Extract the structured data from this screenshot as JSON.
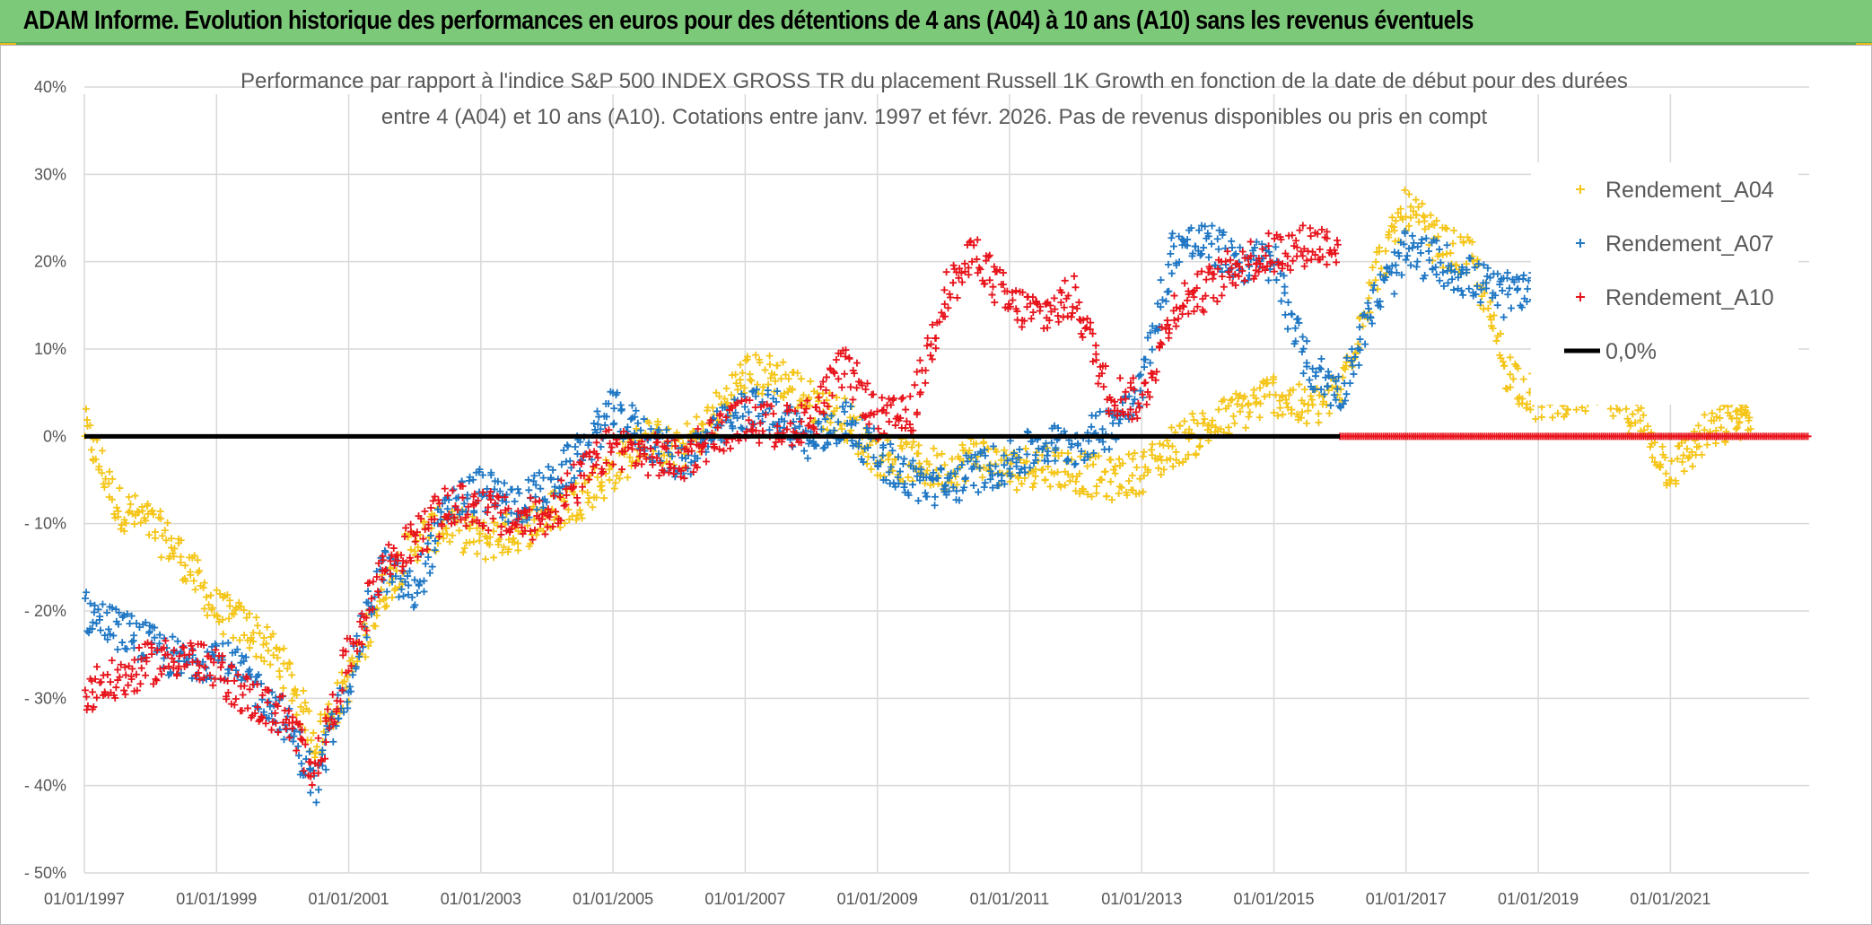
{
  "header": {
    "title": "ADAM Informe. Evolution historique des performances en euros pour des détentions de 4 ans (A04) à 10 ans (A10) sans les revenus éventuels"
  },
  "colors": {
    "header_bg": "#7dc97a",
    "a04": "#f5c518",
    "a07": "#1f77c4",
    "a10": "#e8141c",
    "zero_line": "#000000",
    "grid": "#d9d9d9"
  },
  "chart_data": {
    "type": "scatter",
    "title_lines": [
      "Performance par rapport à l'indice S&P 500 INDEX GROSS TR  du placement Russell 1K Growth en fonction de la date de début pour des durées",
      "entre 4 (A04) et 10 ans (A10). Cotations entre janv. 1997 et févr. 2026. Pas de revenus disponibles ou pris en compt"
    ],
    "x_tick_labels": [
      "01/01/1997",
      "01/01/1999",
      "01/01/2001",
      "01/01/2003",
      "01/01/2005",
      "01/01/2007",
      "01/01/2009",
      "01/01/2011",
      "01/01/2013",
      "01/01/2015",
      "01/01/2017",
      "01/01/2019",
      "01/01/2021"
    ],
    "x_range": [
      1997.0,
      2023.1
    ],
    "y_tick_labels": [
      "40%",
      "30%",
      "20%",
      "10%",
      "0%",
      "- 10%",
      "- 20%",
      "- 30%",
      "- 40%",
      "- 50%"
    ],
    "y_tick_values": [
      40,
      30,
      20,
      10,
      0,
      -10,
      -20,
      -30,
      -40,
      -50
    ],
    "ylim": [
      -50,
      40
    ],
    "marker": "+",
    "legend": [
      "Rendement_A04",
      "Rendement_A07",
      "Rendement_A10",
      "0,0%"
    ],
    "series": [
      {
        "name": "Rendement_A04",
        "x": [
          1997.0,
          1997.5,
          1998.0,
          1998.5,
          1999.0,
          1999.5,
          2000.0,
          2000.5,
          2001.0,
          2001.5,
          2002.0,
          2002.5,
          2003.0,
          2003.5,
          2004.0,
          2004.5,
          2005.0,
          2005.5,
          2006.0,
          2006.5,
          2007.0,
          2007.5,
          2008.0,
          2008.5,
          2009.0,
          2009.5,
          2010.0,
          2010.5,
          2011.0,
          2011.5,
          2012.0,
          2012.5,
          2013.0,
          2013.5,
          2014.0,
          2014.5,
          2015.0,
          2015.5,
          2016.0,
          2016.5,
          2017.0,
          2017.5,
          2018.0,
          2018.5,
          2019.0,
          2019.5,
          2020.0,
          2020.5,
          2021.0,
          2021.5,
          2022.0,
          2022.2
        ],
        "y": [
          1,
          -8,
          -10,
          -14,
          -20,
          -22,
          -26,
          -35,
          -28,
          -18,
          -12,
          -10,
          -12,
          -11,
          -9,
          -7,
          -4,
          0,
          -2,
          2,
          7,
          7,
          4,
          2,
          -2,
          -3,
          -4,
          -2,
          -4,
          -3,
          -4,
          -5,
          -4,
          -1,
          1,
          3,
          5,
          3,
          5,
          18,
          26,
          22,
          20,
          8,
          4,
          5,
          5,
          2,
          -4,
          0,
          2,
          3
        ],
        "jitter": 2.5
      },
      {
        "name": "Rendement_A07",
        "x": [
          1997.0,
          1997.5,
          1998.0,
          1998.5,
          1999.0,
          1999.5,
          2000.0,
          2000.5,
          2001.0,
          2001.5,
          2002.0,
          2002.5,
          2003.0,
          2003.5,
          2004.0,
          2004.5,
          2005.0,
          2005.5,
          2006.0,
          2006.5,
          2007.0,
          2007.5,
          2008.0,
          2008.5,
          2009.0,
          2009.5,
          2010.0,
          2010.5,
          2011.0,
          2011.5,
          2012.0,
          2012.5,
          2013.0,
          2013.5,
          2014.0,
          2014.5,
          2015.0,
          2015.5,
          2016.0,
          2016.5,
          2017.0,
          2017.5,
          2018.0,
          2018.5,
          2019.0
        ],
        "y": [
          -20,
          -22,
          -24,
          -26,
          -25,
          -28,
          -32,
          -40,
          -28,
          -15,
          -18,
          -8,
          -6,
          -8,
          -6,
          -2,
          3,
          0,
          -3,
          0,
          3,
          3,
          -1,
          2,
          -2,
          -5,
          -6,
          -4,
          -3,
          -1,
          -1,
          1,
          6,
          22,
          22,
          20,
          20,
          8,
          5,
          15,
          21,
          20,
          18,
          16,
          18
        ],
        "jitter": 2.5
      },
      {
        "name": "Rendement_A10",
        "x": [
          1997.0,
          1997.5,
          1998.0,
          1998.5,
          1999.0,
          1999.5,
          2000.0,
          2000.5,
          2001.0,
          2001.5,
          2002.0,
          2002.5,
          2003.0,
          2003.5,
          2004.0,
          2004.5,
          2005.0,
          2005.5,
          2006.0,
          2006.5,
          2007.0,
          2007.5,
          2008.0,
          2008.5,
          2009.0,
          2009.5,
          2010.0,
          2010.5,
          2011.0,
          2011.5,
          2012.0,
          2012.5,
          2013.0,
          2013.5,
          2014.0,
          2014.5,
          2015.0,
          2015.5,
          2016.0
        ],
        "y": [
          -29,
          -28,
          -26,
          -25,
          -27,
          -30,
          -32,
          -38,
          -25,
          -15,
          -12,
          -8,
          -8,
          -10,
          -9,
          -5,
          -1,
          -2,
          -3,
          0,
          2,
          1,
          2,
          8,
          2,
          2,
          16,
          21,
          15,
          14,
          16,
          5,
          4,
          15,
          17,
          20,
          21,
          22,
          22
        ],
        "jitter": 2.5
      }
    ],
    "a10_zero_segment": {
      "x_from": 2016.0,
      "x_to": 2023.1,
      "y": 0
    },
    "zero_line": {
      "x_from": 1997.0,
      "x_to": 2016.0,
      "y": 0
    }
  }
}
